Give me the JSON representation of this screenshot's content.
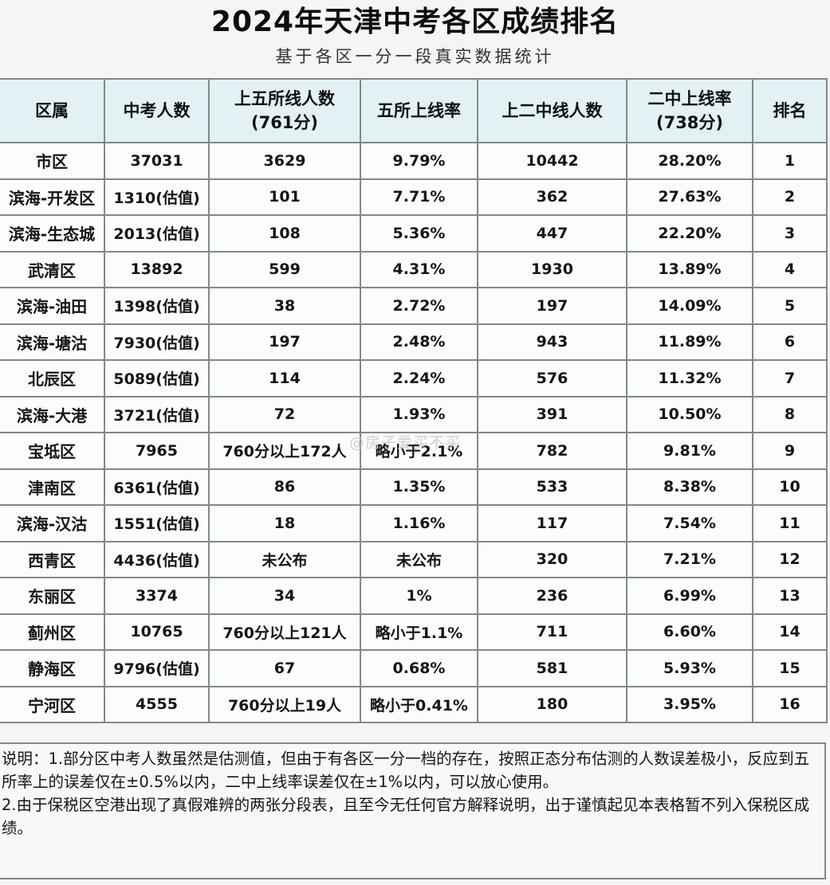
{
  "title": "2024年天津中考各区成绩排名",
  "subtitle": "基于各区一分一段真实数据统计",
  "table": {
    "headers": [
      [
        "区属",
        ""
      ],
      [
        "中考人数",
        ""
      ],
      [
        "上五所线人数",
        "(761分)"
      ],
      [
        "五所上线率",
        ""
      ],
      [
        "上二中线人数",
        ""
      ],
      [
        "二中上线率",
        "(738分)"
      ],
      [
        "排名",
        ""
      ]
    ],
    "rows": [
      [
        "市区",
        "37031",
        "3629",
        "9.79%",
        "10442",
        "28.20%",
        "1"
      ],
      [
        "滨海-开发区",
        "1310(估值)",
        "101",
        "7.71%",
        "362",
        "27.63%",
        "2"
      ],
      [
        "滨海-生态城",
        "2013(估值)",
        "108",
        "5.36%",
        "447",
        "22.20%",
        "3"
      ],
      [
        "武清区",
        "13892",
        "599",
        "4.31%",
        "1930",
        "13.89%",
        "4"
      ],
      [
        "滨海-油田",
        "1398(估值)",
        "38",
        "2.72%",
        "197",
        "14.09%",
        "5"
      ],
      [
        "滨海-塘沽",
        "7930(估值)",
        "197",
        "2.48%",
        "943",
        "11.89%",
        "6"
      ],
      [
        "北辰区",
        "5089(估值)",
        "114",
        "2.24%",
        "576",
        "11.32%",
        "7"
      ],
      [
        "滨海-大港",
        "3721(估值)",
        "72",
        "1.93%",
        "391",
        "10.50%",
        "8"
      ],
      [
        "宝坻区",
        "7965",
        "760分以上172人",
        "略小于2.1%",
        "782",
        "9.81%",
        "9"
      ],
      [
        "津南区",
        "6361(估值)",
        "86",
        "1.35%",
        "533",
        "8.38%",
        "10"
      ],
      [
        "滨海-汉沽",
        "1551(估值)",
        "18",
        "1.16%",
        "117",
        "7.54%",
        "11"
      ],
      [
        "西青区",
        "4436(估值)",
        "未公布",
        "未公布",
        "320",
        "7.21%",
        "12"
      ],
      [
        "东丽区",
        "3374",
        "34",
        "1%",
        "236",
        "6.99%",
        "13"
      ],
      [
        "蓟州区",
        "10765",
        "760分以上121人",
        "略小于1.1%",
        "711",
        "6.60%",
        "14"
      ],
      [
        "静海区",
        "9796(估值)",
        "67",
        "0.68%",
        "581",
        "5.93%",
        "15"
      ],
      [
        "宁河区",
        "4555",
        "760分以上19人",
        "略小于0.41%",
        "180",
        "3.95%",
        "16"
      ]
    ]
  },
  "notes": [
    "说明：1.部分区中考人数虽然是估测值，但由于有各区一分一档的存在，按照正态分布估测的人数误差极小，反应到五所率上的误差仅在±0.5%以内，二中上线率误差仅在±1%以内，可以放心使用。",
    "2.由于保税区空港出现了真假难辨的两张分段表，且至今无任何官方解释说明，出于谨慎起见本表格暂不列入保税区成绩。"
  ],
  "watermark": "@房子爱买不买"
}
